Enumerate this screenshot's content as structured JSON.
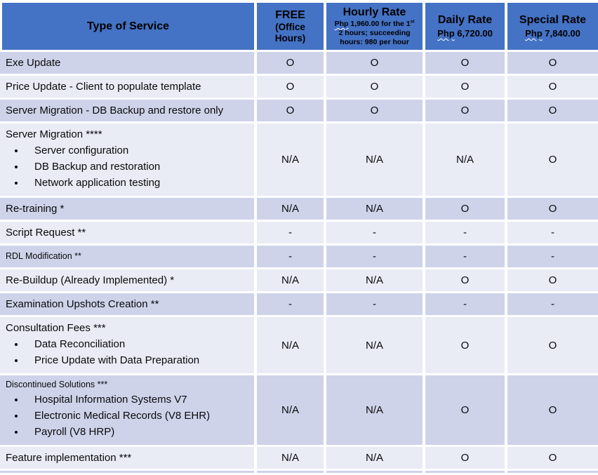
{
  "colors": {
    "header_bg": "#4472C4",
    "band_dark": "#CED3EA",
    "band_light": "#E9EBF5"
  },
  "table": {
    "header": {
      "type_of_service": "Type of Service",
      "free": {
        "title": "FREE",
        "subtitle": "(Office Hours)"
      },
      "hourly": {
        "title": "Hourly Rate",
        "currency": "Php",
        "before_sup": " 1,960.00 for the 1",
        "sup": "st",
        "after_sup": " 2 hours; succeeding hours: 980 per hour"
      },
      "daily": {
        "title": "Daily Rate",
        "currency": "Php",
        "amount": " 6,720.00"
      },
      "special": {
        "title": "Special Rate",
        "currency": "Php",
        "amount": " 7,840.00"
      }
    },
    "rows": [
      {
        "service": "Exe Update",
        "bullets": [],
        "values": [
          "O",
          "O",
          "O",
          "O"
        ]
      },
      {
        "service": "Price Update - Client to populate template",
        "bullets": [],
        "values": [
          "O",
          "O",
          "O",
          "O"
        ]
      },
      {
        "service": "Server Migration - DB Backup and restore only",
        "bullets": [],
        "values": [
          "O",
          "O",
          "O",
          "O"
        ]
      },
      {
        "service": "Server Migration ****",
        "bullets": [
          "Server configuration",
          "DB Backup and restoration",
          "Network application testing"
        ],
        "values": [
          "N/A",
          "N/A",
          "N/A",
          "O"
        ]
      },
      {
        "service": "Re-training *",
        "bullets": [],
        "values": [
          "N/A",
          "N/A",
          "O",
          "O"
        ]
      },
      {
        "service": "Script Request **",
        "bullets": [],
        "values": [
          "-",
          "-",
          "-",
          "-"
        ]
      },
      {
        "service": "RDL Modification **",
        "small_title": true,
        "bullets": [],
        "values": [
          "-",
          "-",
          "-",
          "-"
        ]
      },
      {
        "service": "Re-Buildup (Already Implemented) *",
        "bullets": [],
        "values": [
          "N/A",
          "N/A",
          "O",
          "O"
        ]
      },
      {
        "service": "Examination Upshots Creation **",
        "bullets": [],
        "values": [
          "-",
          "-",
          "-",
          "-"
        ]
      },
      {
        "service": "Consultation Fees ***",
        "bullets": [
          "Data Reconciliation",
          "Price Update with Data Preparation"
        ],
        "values": [
          "N/A",
          "N/A",
          "O",
          "O"
        ]
      },
      {
        "service": "Discontinued Solutions ***",
        "small_title": true,
        "bullets": [
          "Hospital Information Systems V7",
          "Electronic Medical Records (V8 EHR)",
          "Payroll (V8 HRP)"
        ],
        "values": [
          "N/A",
          "N/A",
          "O",
          "O"
        ]
      },
      {
        "service": "Feature implementation ***",
        "bullets": [],
        "values": [
          "N/A",
          "N/A",
          "O",
          "O"
        ]
      }
    ]
  }
}
